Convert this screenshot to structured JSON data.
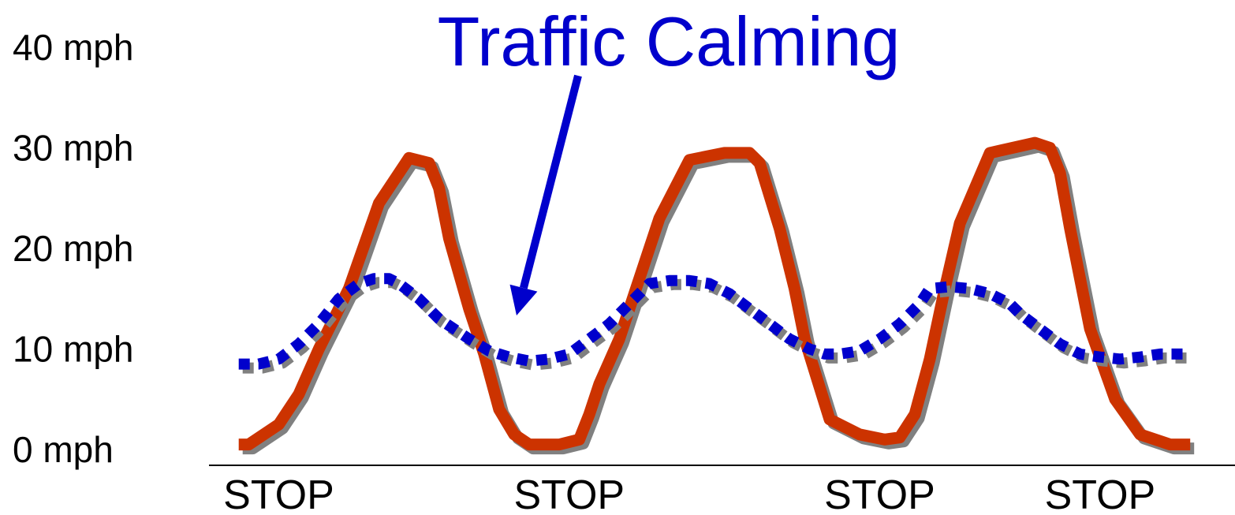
{
  "chart_data": {
    "type": "line",
    "title": "Traffic Calming",
    "xlabel": "",
    "ylabel": "",
    "ylim": [
      0,
      40
    ],
    "yticks": [
      {
        "value": 40,
        "label": "40 mph"
      },
      {
        "value": 30,
        "label": "30 mph"
      },
      {
        "value": 20,
        "label": "20 mph"
      },
      {
        "value": 10,
        "label": "10 mph"
      },
      {
        "value": 0,
        "label": "0 mph"
      }
    ],
    "xlim": [
      0,
      100
    ],
    "xticks": [
      {
        "value": 5,
        "label": "STOP"
      },
      {
        "value": 34,
        "label": "STOP"
      },
      {
        "value": 65,
        "label": "STOP"
      },
      {
        "value": 87,
        "label": "STOP"
      }
    ],
    "grid": false,
    "series": [
      {
        "name": "",
        "style": "solid",
        "color": "#cc3300",
        "x": [
          1,
          2,
          5,
          7,
          9,
          12,
          15,
          18,
          20,
          21,
          22,
          24,
          25.5,
          27,
          28.5,
          30,
          33,
          35,
          36,
          37,
          39,
          43,
          46,
          49.5,
          52,
          53,
          55,
          56.5,
          57.5,
          60,
          63,
          65.5,
          67,
          68.5,
          70,
          71.5,
          73,
          76,
          80.5,
          82,
          83,
          84,
          85,
          86,
          88.5,
          91,
          94,
          95,
          96
        ],
        "y": [
          0.5,
          0.5,
          2.5,
          5.5,
          10,
          16,
          24.5,
          29,
          28.5,
          26,
          21,
          14,
          9.5,
          4,
          1.5,
          0.5,
          0.5,
          1,
          3.5,
          6.5,
          11,
          23,
          28.8,
          29.5,
          29.5,
          28.5,
          22,
          16,
          11,
          3,
          1.5,
          1,
          1.2,
          3.5,
          9,
          16,
          22.5,
          29.5,
          30.5,
          30,
          27.5,
          22,
          17,
          12,
          5,
          1.5,
          0.5,
          0.5,
          0.5
        ],
        "x_note": ""
      },
      {
        "name": "",
        "style": "dotted",
        "color": "#0000cc",
        "x": [
          1,
          3,
          5,
          7,
          9,
          11,
          13,
          14.5,
          16,
          17,
          19,
          21,
          24,
          26,
          28,
          30,
          32,
          34,
          36,
          38,
          40,
          42,
          44,
          46,
          48,
          50,
          52,
          54,
          56,
          58,
          59.5,
          61,
          63,
          65,
          67,
          69,
          70,
          72,
          74,
          76,
          78,
          79,
          81,
          83,
          85,
          87,
          89,
          91,
          93,
          96
        ],
        "y": [
          8.5,
          8.5,
          9,
          10.5,
          12.5,
          15,
          16.5,
          17,
          17,
          16.5,
          15,
          13,
          11,
          9.8,
          9.2,
          8.8,
          9,
          9.5,
          11,
          12.5,
          14.5,
          16.5,
          16.8,
          16.8,
          16.5,
          15.5,
          14,
          12.5,
          11,
          10,
          9.5,
          9.5,
          9.8,
          11,
          12.5,
          14.5,
          16,
          16.2,
          16,
          15.5,
          14.5,
          13.5,
          12,
          10.5,
          9.5,
          9.2,
          9,
          9.2,
          9.5,
          9.5
        ],
        "x_note": ""
      }
    ],
    "annotations": [
      {
        "text": "Traffic Calming",
        "type": "arrow",
        "target_series": 1
      }
    ]
  },
  "colors": {
    "title": "#0000cc",
    "arrow": "#0000cc",
    "shadow": "#808080",
    "axis": "#000000"
  }
}
